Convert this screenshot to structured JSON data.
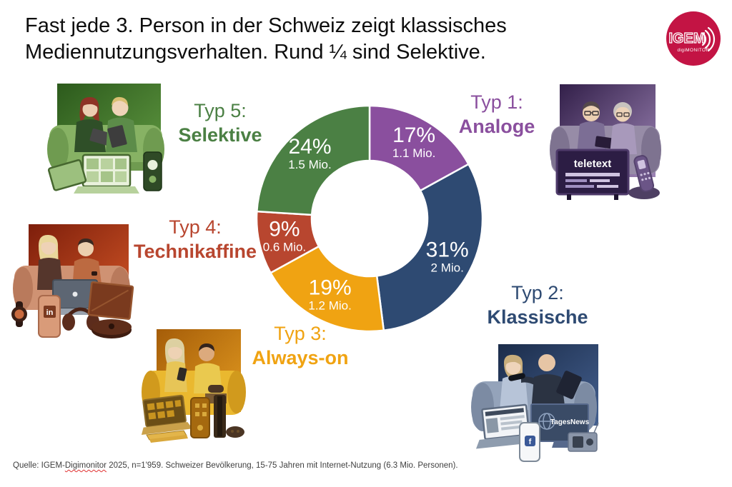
{
  "title": {
    "line1": "Fast jede 3. Person in der Schweiz zeigt klassisches",
    "line2": "Mediennutzungsverhalten. Rund ¼ sind Selektive."
  },
  "logo": {
    "text": "IGEM",
    "subtext": "digiMONITOR",
    "bg_color": "#c31444"
  },
  "chart_data": {
    "type": "pie",
    "variant": "donut",
    "start_angle_deg": 0,
    "direction": "clockwise",
    "legend_position": "around",
    "segments": [
      {
        "type_label": "Typ 1:",
        "name": "Analoge",
        "pct": 17,
        "value_label": "17%",
        "mio": "1.1 Mio.",
        "color": "#8a4f9e"
      },
      {
        "type_label": "Typ 2:",
        "name": "Klassische",
        "pct": 31,
        "value_label": "31%",
        "mio": "2 Mio.",
        "color": "#2e4a72"
      },
      {
        "type_label": "Typ 3:",
        "name": "Always-on",
        "pct": 19,
        "value_label": "19%",
        "mio": "1.2 Mio.",
        "color": "#f0a312"
      },
      {
        "type_label": "Typ 4:",
        "name": "Technikaffine",
        "pct": 9,
        "value_label": "9%",
        "mio": "0.6 Mio.",
        "color": "#b8462f"
      },
      {
        "type_label": "Typ 5:",
        "name": "Selektive",
        "pct": 24,
        "value_label": "24%",
        "mio": "1.5 Mio.",
        "color": "#4b8044"
      }
    ]
  },
  "illustrations": {
    "typ1": {
      "tv_text": "teletext"
    },
    "typ2": {
      "tv_text": "TagesNews",
      "phone_logo": "f"
    },
    "typ4": {
      "phone_logo": "in"
    }
  },
  "footer": {
    "text_before": "Quelle: IGEM-",
    "underlined": "Digimonitor",
    "text_after": " 2025, n=1'959. Schweizer Bevölkerung, 15-75 Jahren mit Internet-Nutzung (6.3 Mio. Personen)."
  }
}
